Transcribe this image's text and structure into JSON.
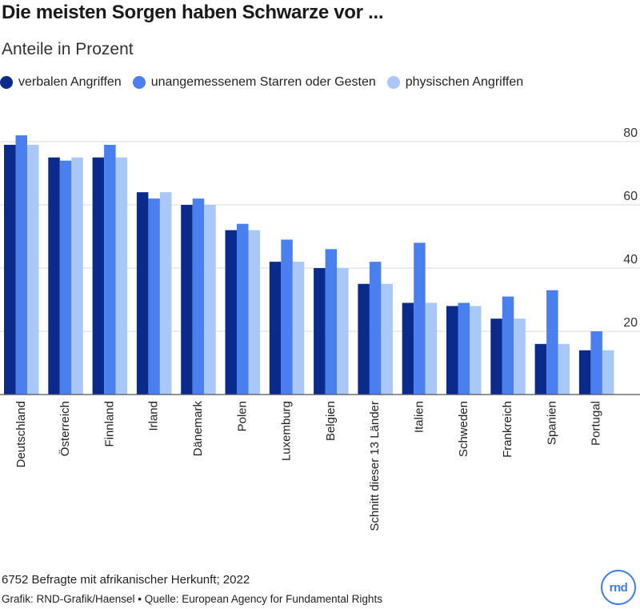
{
  "title": "Die meisten Sorgen haben Schwarze vor ...",
  "subtitle": "Anteile in Prozent",
  "legend": [
    {
      "label": "verbalen Angriffen",
      "color": "#0a2a8c"
    },
    {
      "label": "unangemessenem Starren oder Gesten",
      "color": "#4a7ff0"
    },
    {
      "label": "physischen Angriffen",
      "color": "#a9c7f7"
    }
  ],
  "footer": {
    "note": "6752 Befragte mit afrikanischer Herkunft; 2022",
    "credit": "Grafik: RND-Grafik/Haensel • Quelle: European Agency for Fundamental Rights"
  },
  "logo": {
    "text": "rnd"
  },
  "chart_data": {
    "type": "bar",
    "categories": [
      "Deutschland",
      "Österreich",
      "Finnland",
      "Irland",
      "Dänemark",
      "Polen",
      "Luxemburg",
      "Belgien",
      "Schnitt dieser 13 Länder",
      "Italien",
      "Schweden",
      "Frankreich",
      "Spanien",
      "Portugal"
    ],
    "series": [
      {
        "name": "verbalen Angriffen",
        "color": "#0a2a8c",
        "values": [
          79,
          75,
          75,
          64,
          60,
          52,
          42,
          40,
          35,
          29,
          28,
          24,
          16,
          14
        ]
      },
      {
        "name": "unangemessenem Starren oder Gesten",
        "color": "#4a7ff0",
        "values": [
          82,
          74,
          79,
          62,
          62,
          54,
          49,
          46,
          42,
          48,
          29,
          31,
          33,
          20
        ]
      },
      {
        "name": "physischen Angriffen",
        "color": "#a9c7f7",
        "values": [
          79,
          75,
          75,
          64,
          60,
          52,
          42,
          40,
          35,
          29,
          28,
          24,
          16,
          14
        ]
      }
    ],
    "yticks": [
      20,
      40,
      60,
      80
    ],
    "ylim": [
      0,
      85
    ],
    "grid": true,
    "yaxis_position": "right",
    "legend_position": "top-left"
  }
}
